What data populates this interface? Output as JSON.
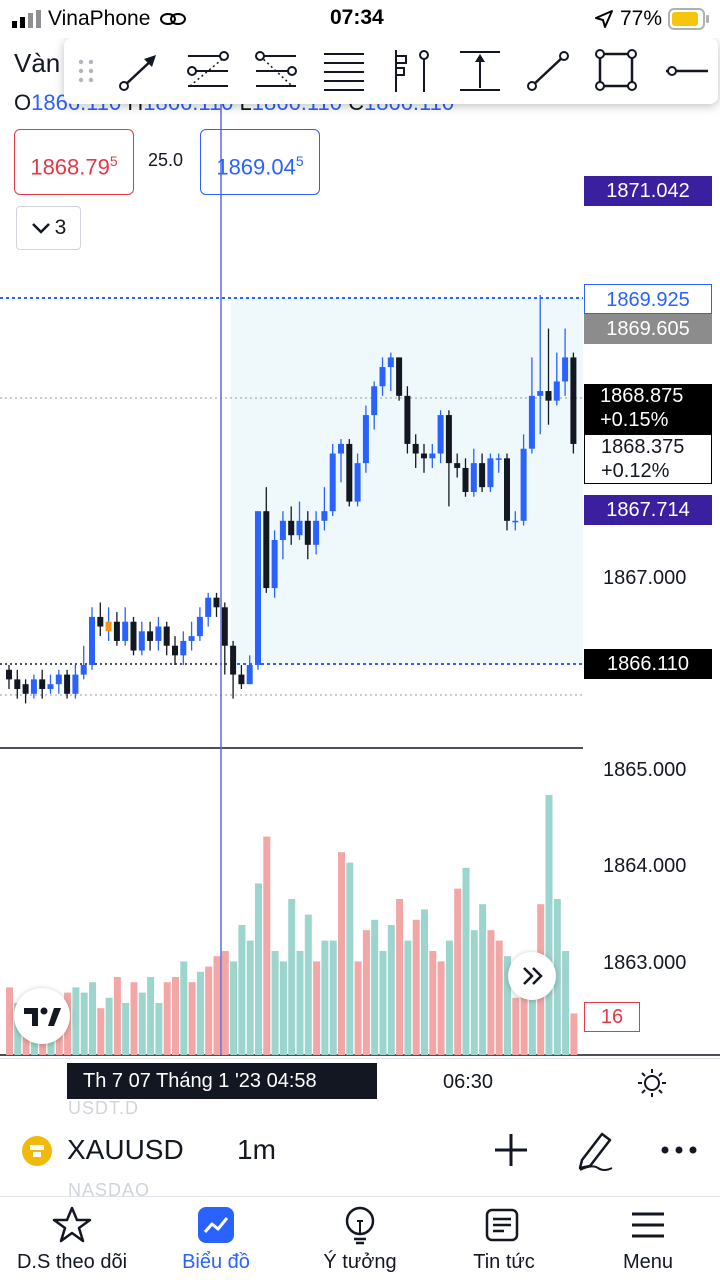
{
  "status_bar": {
    "carrier": "VinaPhone",
    "time": "07:34",
    "battery": "77%"
  },
  "chart": {
    "symbol_title": "Vàn",
    "ohlc": {
      "o_label": "O",
      "o": "1866.110",
      "h_label": "H",
      "h": "1866.110",
      "l_label": "L",
      "l": "1866.110",
      "c_label": "C",
      "c": "1866.110"
    },
    "sell_price": "1868.79",
    "sell_sup": "5",
    "spread": "25.0",
    "buy_price": "1869.04",
    "buy_sup": "5",
    "indicators_count": "3",
    "price_tags": {
      "top": "1871.042",
      "high": "1869.925",
      "mid_gray": "1869.605",
      "last": "1868.875",
      "last_pct": "+0.15%",
      "cursor": "1868.375",
      "cursor_pct": "+0.12%",
      "low_blue": "1867.714",
      "range_low": "1866.110"
    },
    "axis_labels": [
      "1867.000",
      "1865.000",
      "1864.000",
      "1863.000"
    ],
    "volume_value": "16",
    "colors": {
      "up": "#2962ff",
      "down": "#131722",
      "vol_up": "#9cd5cd",
      "vol_down": "#f2a7a6",
      "accent": "#2962ff",
      "sell": "#e53946",
      "range_fill": "#eff9fc",
      "tag_purple": "#3a1f9e"
    }
  },
  "chart_data": {
    "type": "candlestick",
    "title": "XAUUSD 1m",
    "ylim": [
      1862.3,
      1872.0
    ],
    "candles": [
      [
        1866.05,
        1865.95,
        1866.1,
        1865.85
      ],
      [
        1865.95,
        1865.85,
        1866.05,
        1865.75
      ],
      [
        1865.9,
        1865.8,
        1865.95,
        1865.7
      ],
      [
        1865.8,
        1865.95,
        1866.0,
        1865.75
      ],
      [
        1865.95,
        1865.85,
        1866.05,
        1865.75
      ],
      [
        1865.85,
        1865.9,
        1866.0,
        1865.8
      ],
      [
        1865.9,
        1866.0,
        1866.05,
        1865.8
      ],
      [
        1866.0,
        1865.8,
        1866.05,
        1865.75
      ],
      [
        1865.8,
        1866.0,
        1866.1,
        1865.75
      ],
      [
        1866.0,
        1866.1,
        1866.3,
        1865.95
      ],
      [
        1866.1,
        1866.6,
        1866.7,
        1866.05
      ],
      [
        1866.6,
        1866.5,
        1866.75,
        1866.4
      ],
      [
        1866.45,
        1866.55,
        1866.7,
        1866.35
      ],
      [
        1866.55,
        1866.35,
        1866.65,
        1866.3
      ],
      [
        1866.35,
        1866.55,
        1866.7,
        1866.3
      ],
      [
        1866.55,
        1866.25,
        1866.6,
        1866.2
      ],
      [
        1866.25,
        1866.45,
        1866.55,
        1866.2
      ],
      [
        1866.45,
        1866.35,
        1866.55,
        1866.25
      ],
      [
        1866.35,
        1866.5,
        1866.6,
        1866.25
      ],
      [
        1866.5,
        1866.3,
        1866.55,
        1866.2
      ],
      [
        1866.3,
        1866.2,
        1866.4,
        1866.1
      ],
      [
        1866.2,
        1866.35,
        1866.45,
        1866.1
      ],
      [
        1866.35,
        1866.4,
        1866.55,
        1866.25
      ],
      [
        1866.4,
        1866.6,
        1866.7,
        1866.35
      ],
      [
        1866.6,
        1866.8,
        1866.85,
        1866.5
      ],
      [
        1866.8,
        1866.7,
        1866.85,
        1866.6
      ],
      [
        1866.7,
        1866.3,
        1866.75,
        1866.0
      ],
      [
        1866.3,
        1866.0,
        1866.35,
        1865.75
      ],
      [
        1866.0,
        1865.9,
        1866.1,
        1865.85
      ],
      [
        1865.9,
        1866.1,
        1866.2,
        1865.9
      ],
      [
        1866.1,
        1867.7,
        1867.7,
        1866.05
      ],
      [
        1867.7,
        1866.9,
        1867.95,
        1866.85
      ],
      [
        1866.9,
        1867.4,
        1867.5,
        1866.8
      ],
      [
        1867.4,
        1867.6,
        1867.7,
        1867.2
      ],
      [
        1867.6,
        1867.45,
        1867.75,
        1867.35
      ],
      [
        1867.45,
        1867.6,
        1867.8,
        1867.4
      ],
      [
        1867.6,
        1867.35,
        1867.7,
        1867.2
      ],
      [
        1867.35,
        1867.6,
        1867.7,
        1867.25
      ],
      [
        1867.6,
        1867.7,
        1867.95,
        1867.5
      ],
      [
        1867.7,
        1868.3,
        1868.4,
        1867.65
      ],
      [
        1868.3,
        1868.4,
        1868.45,
        1868.0
      ],
      [
        1868.4,
        1867.8,
        1868.45,
        1867.75
      ],
      [
        1867.8,
        1868.2,
        1868.3,
        1867.75
      ],
      [
        1868.2,
        1868.7,
        1868.8,
        1868.1
      ],
      [
        1868.7,
        1869.0,
        1869.05,
        1868.55
      ],
      [
        1869.0,
        1869.2,
        1869.3,
        1868.9
      ],
      [
        1869.2,
        1869.3,
        1869.35,
        1868.95
      ],
      [
        1869.3,
        1868.9,
        1869.3,
        1868.85
      ],
      [
        1868.9,
        1868.4,
        1869.0,
        1868.3
      ],
      [
        1868.4,
        1868.3,
        1868.5,
        1868.15
      ],
      [
        1868.3,
        1868.25,
        1868.4,
        1868.1
      ],
      [
        1868.25,
        1868.3,
        1868.4,
        1868.15
      ],
      [
        1868.3,
        1868.7,
        1868.75,
        1868.2
      ],
      [
        1868.7,
        1868.2,
        1868.75,
        1867.75
      ],
      [
        1868.2,
        1868.15,
        1868.3,
        1868.05
      ],
      [
        1868.15,
        1867.9,
        1868.25,
        1867.85
      ],
      [
        1867.9,
        1868.2,
        1868.35,
        1867.85
      ],
      [
        1868.2,
        1867.95,
        1868.3,
        1867.9
      ],
      [
        1867.95,
        1868.25,
        1868.3,
        1867.9
      ],
      [
        1868.25,
        1868.25,
        1868.3,
        1868.1
      ],
      [
        1868.25,
        1867.6,
        1868.3,
        1867.5
      ],
      [
        1867.6,
        1867.6,
        1867.7,
        1867.5
      ],
      [
        1867.6,
        1868.35,
        1868.5,
        1867.55
      ],
      [
        1868.35,
        1868.9,
        1869.3,
        1868.3
      ],
      [
        1868.9,
        1868.95,
        1869.95,
        1868.5
      ],
      [
        1868.95,
        1868.85,
        1869.6,
        1868.6
      ],
      [
        1868.85,
        1869.05,
        1869.35,
        1868.8
      ],
      [
        1869.05,
        1869.3,
        1869.6,
        1868.9
      ],
      [
        1869.3,
        1868.4,
        1869.35,
        1868.3
      ]
    ],
    "volume": [
      [
        13,
        0
      ],
      [
        10,
        1
      ],
      [
        9,
        0
      ],
      [
        12,
        1
      ],
      [
        11,
        0
      ],
      [
        10,
        1
      ],
      [
        8,
        0
      ],
      [
        12,
        0
      ],
      [
        13,
        1
      ],
      [
        12,
        1
      ],
      [
        14,
        1
      ],
      [
        9,
        0
      ],
      [
        11,
        1
      ],
      [
        15,
        0
      ],
      [
        10,
        1
      ],
      [
        14,
        0
      ],
      [
        12,
        1
      ],
      [
        15,
        1
      ],
      [
        10,
        1
      ],
      [
        14,
        0
      ],
      [
        15,
        0
      ],
      [
        18,
        1
      ],
      [
        14,
        0
      ],
      [
        16,
        1
      ],
      [
        17,
        0
      ],
      [
        19,
        0
      ],
      [
        20,
        0
      ],
      [
        18,
        1
      ],
      [
        25,
        1
      ],
      [
        22,
        1
      ],
      [
        33,
        1
      ],
      [
        42,
        0
      ],
      [
        20,
        1
      ],
      [
        18,
        1
      ],
      [
        30,
        1
      ],
      [
        20,
        1
      ],
      [
        27,
        1
      ],
      [
        18,
        0
      ],
      [
        22,
        1
      ],
      [
        22,
        1
      ],
      [
        39,
        0
      ],
      [
        37,
        1
      ],
      [
        18,
        0
      ],
      [
        24,
        0
      ],
      [
        26,
        1
      ],
      [
        20,
        1
      ],
      [
        25,
        1
      ],
      [
        30,
        0
      ],
      [
        22,
        1
      ],
      [
        26,
        0
      ],
      [
        28,
        1
      ],
      [
        20,
        0
      ],
      [
        18,
        0
      ],
      [
        22,
        1
      ],
      [
        32,
        0
      ],
      [
        36,
        1
      ],
      [
        24,
        1
      ],
      [
        29,
        1
      ],
      [
        24,
        0
      ],
      [
        22,
        0
      ],
      [
        19,
        1
      ],
      [
        11,
        0
      ],
      [
        14,
        0
      ],
      [
        16,
        1
      ],
      [
        29,
        0
      ],
      [
        50,
        1
      ],
      [
        30,
        1
      ],
      [
        20,
        1
      ],
      [
        8,
        0
      ]
    ]
  },
  "time_axis": {
    "cursor_label": "Th 7 07 Tháng 1 '23   04:58",
    "label_1": "06:30"
  },
  "symbol_bar": {
    "symbol": "XAUUSD",
    "interval": "1m",
    "ghost_above": "USDT.D",
    "ghost_below": "NASDAQ"
  },
  "nav": [
    {
      "label": "D.S theo dõi",
      "icon": "star-icon"
    },
    {
      "label": "Biểu đồ",
      "icon": "chart-icon"
    },
    {
      "label": "Ý tưởng",
      "icon": "lightbulb-icon"
    },
    {
      "label": "Tin tức",
      "icon": "news-icon"
    },
    {
      "label": "Menu",
      "icon": "menu-icon"
    }
  ]
}
